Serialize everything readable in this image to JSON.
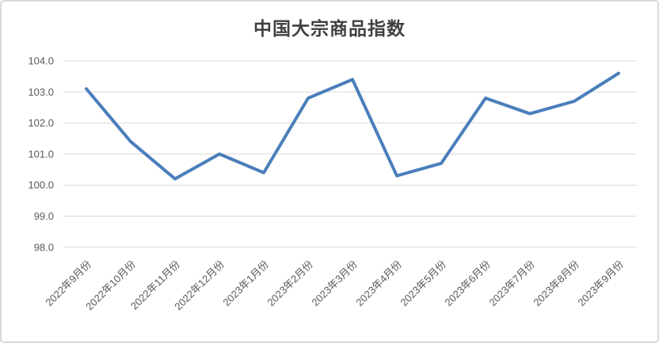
{
  "chart_data": {
    "type": "line",
    "title": "中国大宗商品指数",
    "categories": [
      "2022年9月份",
      "2022年10月份",
      "2022年11月份",
      "2022年12月份",
      "2023年1月份",
      "2023年2月份",
      "2023年3月份",
      "2023年4月份",
      "2023年5月份",
      "2023年6月份",
      "2023年7月份",
      "2023年8月份",
      "2023年9月份"
    ],
    "values": [
      103.1,
      101.4,
      100.2,
      101.0,
      100.4,
      102.8,
      103.4,
      100.3,
      100.7,
      102.8,
      102.3,
      102.7,
      103.6
    ],
    "xlabel": "",
    "ylabel": "",
    "ylim": [
      98.0,
      104.0
    ],
    "ytick_step": 1.0,
    "ytick_labels": [
      "98.0",
      "99.0",
      "100.0",
      "101.0",
      "102.0",
      "103.0",
      "104.0"
    ],
    "grid": true,
    "legend_position": "none",
    "x_label_rotation_deg": -45,
    "colors": {
      "line": "#4a7ebb",
      "grid": "#d9d9d9",
      "tick_labels": "#595959",
      "title": "#404040",
      "frame_border": "#d9d9d9",
      "background": "#ffffff"
    }
  }
}
